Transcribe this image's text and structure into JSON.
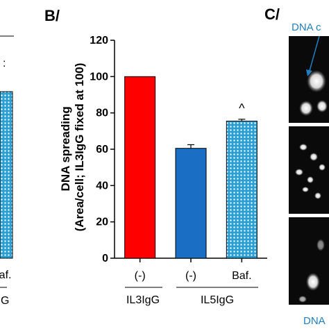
{
  "panel_a": {
    "legend_fragment": ":",
    "category_label_fragment": "Baf.",
    "group_label_fragment": "G",
    "bar_color": "#2a9fd4"
  },
  "panel_b": {
    "panel_label": "B/",
    "group_labels": [
      "IL3IgG",
      "IL5IgG"
    ],
    "chart_data": {
      "type": "bar",
      "title": "",
      "categories": [
        "(-)",
        "(-)",
        "Baf."
      ],
      "groups": [
        "IL3IgG",
        "IL5IgG",
        "IL5IgG"
      ],
      "values": [
        100,
        60.5,
        75.5
      ],
      "errors": [
        0,
        2,
        1
      ],
      "annotations": [
        "",
        "",
        "^"
      ],
      "colors": [
        "#ff0000",
        "#1a6fc4",
        "#2a9fd4"
      ],
      "patterns": [
        "solid",
        "solid",
        "hatched"
      ],
      "xlabel": "",
      "ylabel": "DNA spreading (Area/cell; IL3IgG fixed at 100)",
      "ylim": [
        0,
        120
      ],
      "yticks": [
        0,
        20,
        40,
        60,
        80,
        100,
        120
      ],
      "ytick_labels": [
        "0",
        "20",
        "40",
        "60",
        "80",
        "100",
        "120"
      ],
      "grid": false,
      "legend": "none"
    }
  },
  "panel_c": {
    "panel_label": "C/",
    "top_annotation": "DNA c",
    "bottom_annotation": "DNA"
  }
}
